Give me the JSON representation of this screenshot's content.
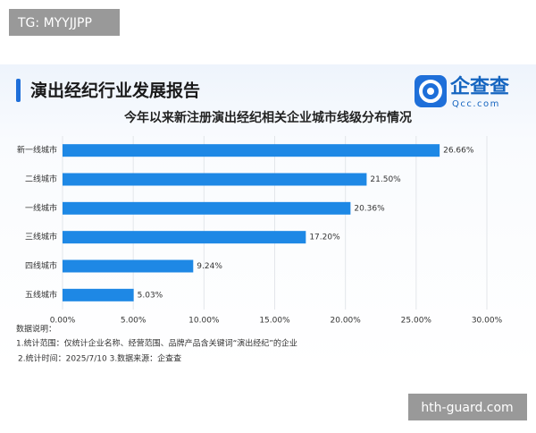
{
  "watermark": "TG: MYYJJPP",
  "footer_watermark": "hth-guard.com",
  "header": {
    "title": "演出经纪行业发展报告",
    "logo_text": "企查查",
    "logo_domain": "Qcc.com"
  },
  "chart_data": {
    "type": "hbar",
    "title": "今年以来新注册演出经纪相关企业城市线级分布情况",
    "categories": [
      "新一线城市",
      "二线城市",
      "一线城市",
      "三线城市",
      "四线城市",
      "五线城市"
    ],
    "values": [
      26.66,
      21.5,
      20.36,
      17.2,
      9.24,
      5.03
    ],
    "value_labels": [
      "26.66%",
      "21.50%",
      "20.36%",
      "17.20%",
      "9.24%",
      "5.03%"
    ],
    "color": "#1e88e5",
    "xlim": [
      0,
      30
    ],
    "xticks": [
      {
        "value": 0,
        "label": "0.00%"
      },
      {
        "value": 5,
        "label": "5.00%"
      },
      {
        "value": 10,
        "label": "10.00%"
      },
      {
        "value": 15,
        "label": "15.00%"
      },
      {
        "value": 20,
        "label": "20.00%"
      },
      {
        "value": 25,
        "label": "25.00%"
      },
      {
        "value": 30,
        "label": "30.00%"
      }
    ],
    "grid": true
  },
  "notes": [
    "数据说明：",
    "1.统计范围：仅统计企业名称、经营范围、品牌产品含关键词“演出经纪”的企业",
    "2.统计时间：2025/7/10 3.数据来源：企查查"
  ]
}
